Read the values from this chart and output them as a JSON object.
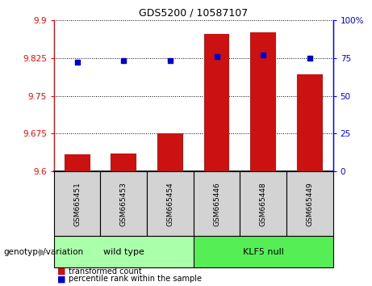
{
  "title": "GDS5200 / 10587107",
  "samples": [
    "GSM665451",
    "GSM665453",
    "GSM665454",
    "GSM665446",
    "GSM665448",
    "GSM665449"
  ],
  "transformed_counts": [
    9.634,
    9.636,
    9.676,
    9.872,
    9.875,
    9.793
  ],
  "percentile_ranks": [
    72,
    73,
    73,
    76,
    77,
    75
  ],
  "groups": [
    {
      "label": "wild type",
      "start": 0,
      "end": 2,
      "color": "#aaffaa"
    },
    {
      "label": "KLF5 null",
      "start": 3,
      "end": 5,
      "color": "#55ee55"
    }
  ],
  "ylim_left": [
    9.6,
    9.9
  ],
  "ylim_right": [
    0,
    100
  ],
  "yticks_left": [
    9.6,
    9.675,
    9.75,
    9.825,
    9.9
  ],
  "yticks_right": [
    0,
    25,
    50,
    75,
    100
  ],
  "bar_color": "#cc1111",
  "dot_color": "#0000cc",
  "bar_width": 0.55,
  "legend_items": [
    {
      "label": "transformed count",
      "color": "#cc1111"
    },
    {
      "label": "percentile rank within the sample",
      "color": "#0000cc"
    }
  ],
  "genotype_label": "genotype/variation",
  "title_fontsize": 9,
  "tick_fontsize": 7.5,
  "label_fontsize": 7.5,
  "sample_fontsize": 6.5,
  "group_fontsize": 8,
  "legend_fontsize": 7
}
